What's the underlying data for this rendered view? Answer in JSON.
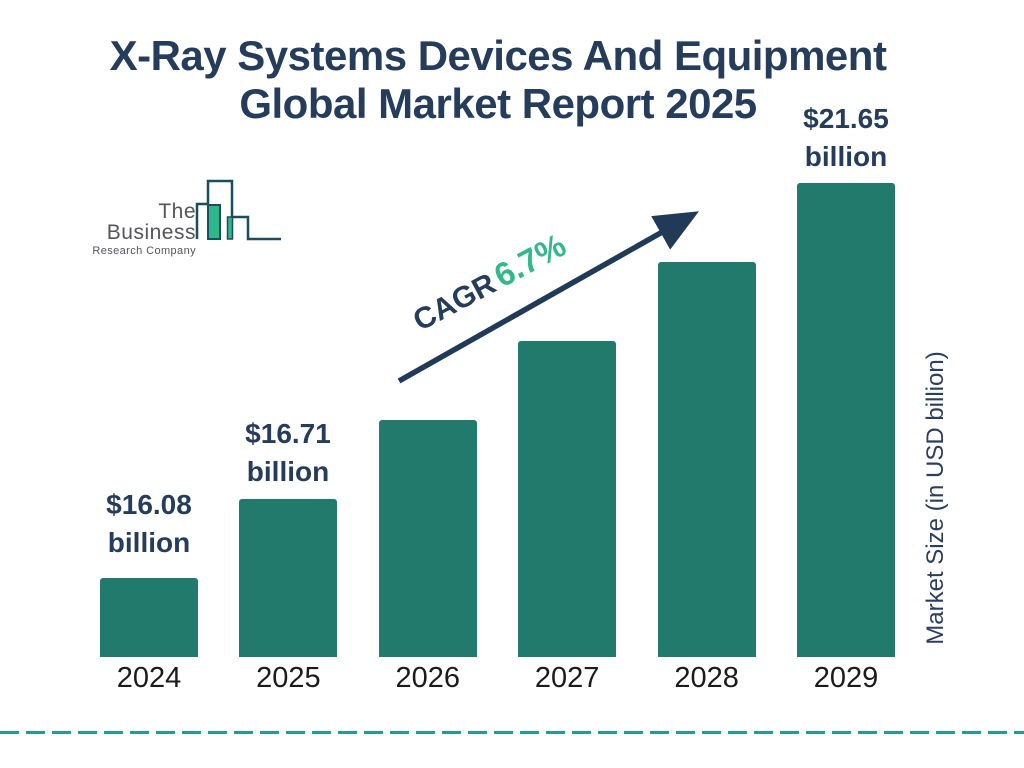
{
  "header": {
    "title_line1": "X-Ray Systems Devices And Equipment",
    "title_line2": "Global Market Report 2025"
  },
  "logo": {
    "name_line1": "The Business",
    "name_line2": "Research Company"
  },
  "cagr": {
    "prefix": "CAGR",
    "value": "6.7%"
  },
  "y_axis_label": "Market Size (in USD billion)",
  "colors": {
    "bar": "#217a6b",
    "navy_text": "#253c5b",
    "green_accent": "#31b98c",
    "dashed_rule": "#2a9a8f",
    "logo_outline": "#1c4d5e",
    "logo_green": "#2eb88a",
    "logo_gray_text": "#54565a",
    "year_text": "#1b1b1b"
  },
  "chart_data": {
    "type": "bar",
    "title": "X-Ray Systems Devices And Equipment Global Market Report 2025",
    "categories": [
      "2024",
      "2025",
      "2026",
      "2027",
      "2028",
      "2029"
    ],
    "values": [
      16.08,
      16.71,
      17.83,
      19.02,
      20.3,
      21.65
    ],
    "values_estimated": [
      false,
      false,
      true,
      true,
      true,
      false
    ],
    "value_unit": "USD billion",
    "value_labels": [
      {
        "category": "2024",
        "line1": "$16.08",
        "line2": "billion"
      },
      {
        "category": "2025",
        "line1": "$16.71",
        "line2": "billion"
      },
      {
        "category": "2029",
        "line1": "$21.65",
        "line2": "billion"
      }
    ],
    "cagr_annotation": "CAGR 6.7%",
    "xlabel": "",
    "ylabel": "Market Size (in USD billion)",
    "legend": false,
    "grid": false,
    "bar_color": "#217a6b"
  }
}
